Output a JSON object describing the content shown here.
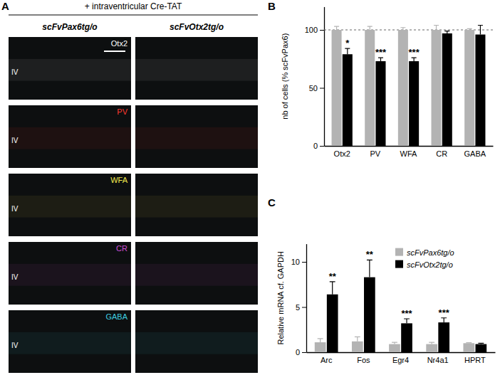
{
  "figure": {
    "panel_labels": [
      "A",
      "B",
      "C"
    ],
    "header": "+ intraventricular Cre-TAT",
    "columns": [
      "scFvPax6tg/o",
      "scFvOtx2tg/o"
    ],
    "rows": [
      {
        "label": "Otx2",
        "color": "#ffffff"
      },
      {
        "label": "PV",
        "color": "#ff3b30"
      },
      {
        "label": "WFA",
        "color": "#f2e94e"
      },
      {
        "label": "CR",
        "color": "#d04fd8"
      },
      {
        "label": "GABA",
        "color": "#3fd0e0"
      }
    ],
    "layer": "IV"
  },
  "chart_data": [
    {
      "type": "bar",
      "y_label": "nb of cells (% scFvPax6)",
      "categories": [
        "Otx2",
        "PV",
        "WFA",
        "CR",
        "GABA"
      ],
      "series": [
        {
          "color": "#b3b3b3",
          "values": [
            100,
            100,
            100,
            100,
            100
          ],
          "errors": [
            3,
            3,
            2,
            4,
            1
          ]
        },
        {
          "color": "#000000",
          "values": [
            79,
            73,
            73,
            97,
            96
          ],
          "errors": [
            5,
            3,
            3,
            2,
            8
          ]
        }
      ],
      "annotations": [
        "*",
        "***",
        "***",
        null,
        null
      ],
      "hline": 100,
      "ylim": [
        0,
        120
      ],
      "yticks": [
        0,
        50,
        100
      ]
    },
    {
      "type": "bar",
      "y_label": "Relative mRNA cf. GAPDH",
      "categories": [
        "Arc",
        "Fos",
        "Egr4",
        "Nr4a1",
        "HPRT"
      ],
      "series": [
        {
          "name": "scFvPax6tg/o",
          "color": "#b3b3b3",
          "values": [
            1.1,
            1.2,
            0.9,
            0.9,
            1.0
          ],
          "errors": [
            0.4,
            0.5,
            0.2,
            0.2,
            0.05
          ]
        },
        {
          "name": "scFvOtx2tg/o",
          "color": "#000000",
          "values": [
            6.4,
            8.3,
            3.2,
            3.3,
            0.9
          ],
          "errors": [
            1.4,
            1.9,
            0.5,
            0.5,
            0.1
          ]
        }
      ],
      "annotations": [
        "**",
        "**",
        "***",
        "***",
        null
      ],
      "legend": "upper right",
      "ylim": [
        0,
        12
      ],
      "yticks": [
        0,
        5,
        10
      ]
    }
  ]
}
